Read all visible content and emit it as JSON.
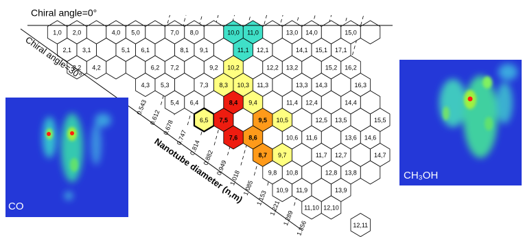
{
  "header": {
    "chiral_0": "Chiral angle=0°",
    "chiral_30": "Chiral angle=30°",
    "axis_label": "Nanotube diameter (n,m)"
  },
  "grid": {
    "rows": [
      {
        "cells": [
          null,
          "1,0",
          "2,0",
          null,
          "4,0",
          "5,0",
          null,
          "7,0",
          "8,0",
          null,
          {
            "label": "10,0",
            "color": "#3fe0c8"
          },
          {
            "label": "11,0",
            "color": "#3fe0c8"
          },
          null,
          "13,0",
          "14,0",
          null,
          "15,0",
          null
        ]
      },
      {
        "cells": [
          null,
          "2,1",
          "3,1",
          null,
          "5,1",
          "6,1",
          null,
          "8,1",
          "9,1",
          null,
          {
            "label": "11,1",
            "color": "#3fe0c8"
          },
          "12,1",
          null,
          "14,1",
          "15,1",
          "17,1"
        ]
      },
      {
        "cells": [
          null,
          "3,2",
          "4,2",
          null,
          null,
          "6,2",
          "7,2",
          null,
          "9,2",
          {
            "label": "10,2",
            "color": "#ffff80"
          },
          null,
          "12,2",
          "13,2",
          null,
          "15,2",
          "16,2"
        ]
      },
      {
        "cells": [
          null,
          null,
          null,
          null,
          "4,3",
          "5,3",
          null,
          "7,3",
          {
            "label": "8,3",
            "color": "#ffff80"
          },
          {
            "label": "10,3",
            "color": "#ffff80"
          },
          "11,3",
          null,
          "13,3",
          "14,3",
          null,
          "16,3"
        ]
      },
      {
        "cells": [
          null,
          null,
          null,
          null,
          null,
          "5,4",
          "6,4",
          null,
          {
            "label": "8,4",
            "color": "#ee1c10"
          },
          {
            "label": "9,4",
            "color": "#ffff80"
          },
          null,
          "11,4",
          "12,4",
          null,
          "14,4",
          null
        ]
      },
      {
        "cells": [
          null,
          null,
          null,
          null,
          null,
          null,
          {
            "label": "6,5",
            "color": "#ffff80",
            "emphasis": true
          },
          {
            "label": "7,5",
            "color": "#ee1c10"
          },
          null,
          {
            "label": "9,5",
            "color": "#ff9a1a"
          },
          {
            "label": "10,5",
            "color": "#ffff80"
          },
          null,
          "12,5",
          "13,5",
          null,
          "15,5"
        ]
      },
      {
        "cells": [
          null,
          null,
          null,
          null,
          null,
          null,
          null,
          {
            "label": "7,6",
            "color": "#ee1c10"
          },
          {
            "label": "8,6",
            "color": "#ff9a1a"
          },
          null,
          "10,6",
          "11,6",
          null,
          "13,6",
          "14,6"
        ]
      },
      {
        "cells": [
          null,
          null,
          null,
          null,
          null,
          null,
          null,
          null,
          {
            "label": "8,7",
            "color": "#ff9a1a"
          },
          {
            "label": "9,7",
            "color": "#ffff80"
          },
          null,
          "11,7",
          "12,7",
          null,
          "14,7"
        ]
      },
      {
        "cells": [
          null,
          null,
          null,
          null,
          null,
          null,
          null,
          null,
          "9,8",
          "10,8",
          null,
          "12,8",
          "13,8",
          null
        ]
      },
      {
        "cells": [
          null,
          null,
          null,
          null,
          null,
          null,
          null,
          null,
          "10,9",
          "11,9",
          null,
          "13,9"
        ]
      },
      {
        "cells": [
          null,
          null,
          null,
          null,
          null,
          null,
          null,
          null,
          null,
          "11,10",
          "12,10"
        ]
      },
      {
        "cells": [
          null,
          null,
          null,
          null,
          null,
          null,
          null,
          null,
          null,
          null,
          null,
          "12,11"
        ]
      }
    ]
  },
  "diameters": [
    "0.543",
    "0.612",
    "0.678",
    "0.747",
    "0.814",
    "0.882",
    "0.949",
    "1.018",
    "1.085",
    "1.153",
    "1.221",
    "1.289",
    "1.356"
  ],
  "maps": [
    {
      "label": "CO"
    },
    {
      "label": "CH₃OH"
    }
  ]
}
